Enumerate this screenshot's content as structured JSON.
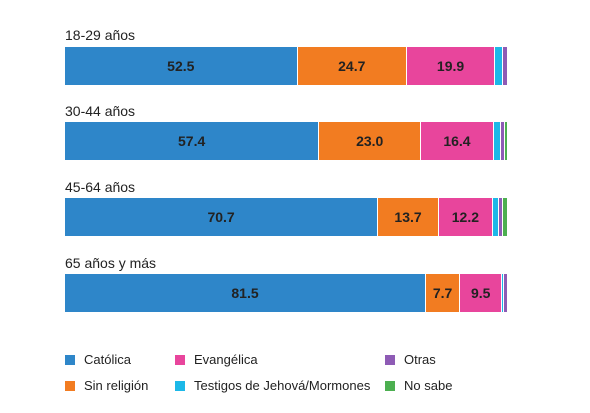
{
  "chart_data": {
    "type": "bar",
    "orientation": "horizontal",
    "stacked": true,
    "normalized_percent": true,
    "title": "",
    "xlabel": "",
    "ylabel": "",
    "grid": false,
    "legend_position": "bottom",
    "categories": [
      "18-29 años",
      "30-44 años",
      "45-64 años",
      "65 años y más"
    ],
    "series": [
      {
        "name": "Católica",
        "color": "#2e86c9",
        "values": [
          52.5,
          57.4,
          70.7,
          81.5
        ],
        "show_label": true
      },
      {
        "name": "Sin religión",
        "color": "#f27c21",
        "values": [
          24.7,
          23.0,
          13.7,
          7.7
        ],
        "show_label": true
      },
      {
        "name": "Evangélica",
        "color": "#e8459c",
        "values": [
          19.9,
          16.4,
          12.2,
          9.5
        ],
        "show_label": true
      },
      {
        "name": "Testigos de Jehová/Mormones",
        "color": "#1cb8e8",
        "values": [
          1.7,
          1.6,
          1.3,
          0.5
        ],
        "show_label": false
      },
      {
        "name": "Otras",
        "color": "#8e5bb5",
        "values": [
          1.2,
          0.9,
          0.9,
          0.8
        ],
        "show_label": false
      },
      {
        "name": "No sabe",
        "color": "#4caf50",
        "values": [
          0.0,
          0.7,
          1.2,
          0.0
        ],
        "show_label": false
      }
    ]
  },
  "legend": {
    "items": [
      {
        "label": "Católica",
        "color": "#2e86c9"
      },
      {
        "label": "Evangélica",
        "color": "#e8459c"
      },
      {
        "label": "Otras",
        "color": "#8e5bb5"
      },
      {
        "label": "Sin religión",
        "color": "#f27c21"
      },
      {
        "label": "Testigos de Jehová/Mormones",
        "color": "#1cb8e8"
      },
      {
        "label": "No sabe",
        "color": "#4caf50"
      }
    ]
  }
}
